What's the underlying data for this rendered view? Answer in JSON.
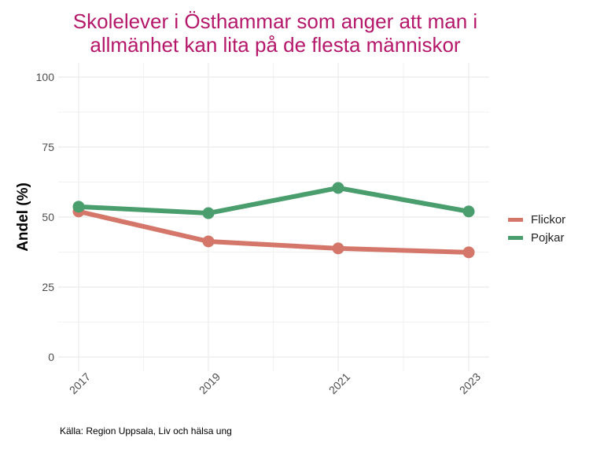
{
  "chart_data": {
    "type": "line",
    "title": "Skolelever i Östhammar som anger att man i allmänhet kan lita på de flesta människor",
    "title_lines": [
      "Skolelever i Östhammar som anger att man i",
      "allmänhet kan lita på de flesta människor"
    ],
    "xlabel": "",
    "ylabel": "Andel (%)",
    "x": [
      "2017",
      "2019",
      "2021",
      "2023"
    ],
    "ylim": [
      0,
      100
    ],
    "yticks": [
      0,
      25,
      50,
      75,
      100
    ],
    "grid": true,
    "legend_position": "right",
    "series": [
      {
        "name": "Flickor",
        "color": "#d4776a",
        "values": [
          52,
          41.3,
          38.8,
          37.4
        ]
      },
      {
        "name": "Pojkar",
        "color": "#4a9e6e",
        "values": [
          53.7,
          51.4,
          60.4,
          52
        ]
      }
    ],
    "caption": "Källa: Region Uppsala, Liv och hälsa ung"
  }
}
